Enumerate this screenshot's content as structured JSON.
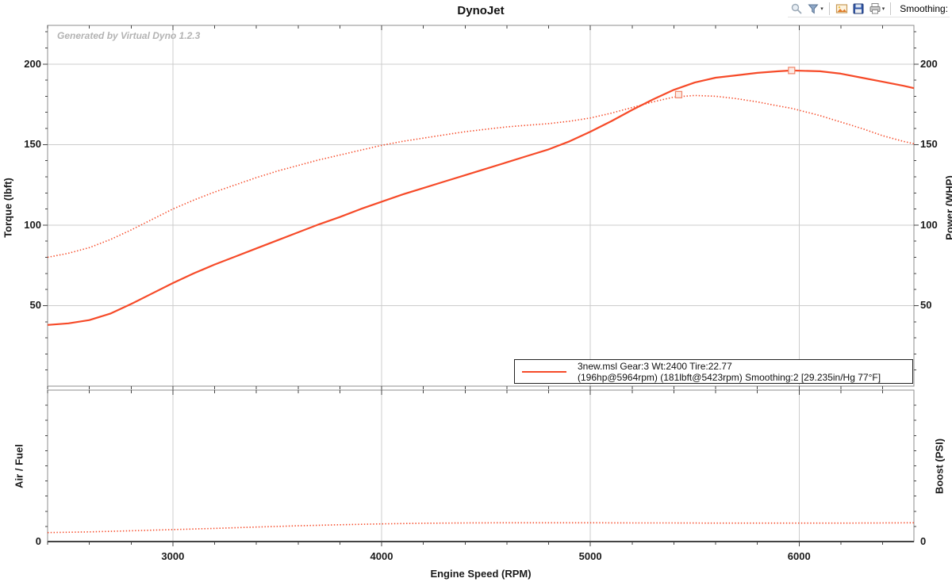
{
  "title": "DynoJet",
  "watermark": "Generated by Virtual Dyno 1.2.3",
  "legend": {
    "line1": "3new.msl Gear:3 Wt:2400 Tire:22.77",
    "line2": "(196hp@5964rpm) (181lbft@5423rpm) Smoothing:2 [29.235in/Hg 77°F]"
  },
  "toolbar": {
    "smoothing_label": "Smoothing:",
    "icons": [
      "zoom",
      "filter",
      "export-image",
      "save",
      "print"
    ]
  },
  "colors": {
    "curve": "#f64a28",
    "marker_stroke": "#f08468",
    "marker_fill": "#fcebe5",
    "grid": "#cccccc",
    "frame": "#8c8c8c",
    "axis_dark": "#444444",
    "text": "#1a1a1a",
    "watermark": "#b3b3b3"
  },
  "chart_data": [
    {
      "id": "dyno-main",
      "type": "line",
      "title": "DynoJet",
      "xlabel": "Engine Speed (RPM)",
      "ylabel_left": "Torque (lbft)",
      "ylabel_right": "Power (WHP)",
      "xlim": [
        2400,
        6550
      ],
      "ylim": [
        0,
        224
      ],
      "x_ticks": [
        3000,
        4000,
        5000,
        6000
      ],
      "x_minor_step": 200,
      "y_ticks": [
        50,
        100,
        150,
        200
      ],
      "y_minor_step": 10,
      "grid": true,
      "legend_position": "bottom-right",
      "series": [
        {
          "name": "power_whp",
          "style": "solid",
          "peak_label": "196hp@5964rpm",
          "peak": {
            "x": 5964,
            "value": 196
          },
          "x": [
            2400,
            2500,
            2600,
            2700,
            2800,
            2900,
            3000,
            3100,
            3200,
            3300,
            3400,
            3500,
            3600,
            3700,
            3800,
            3900,
            4000,
            4100,
            4200,
            4300,
            4400,
            4500,
            4600,
            4700,
            4800,
            4900,
            5000,
            5100,
            5200,
            5300,
            5400,
            5500,
            5600,
            5700,
            5800,
            5900,
            5964,
            6100,
            6200,
            6300,
            6400,
            6500,
            6550
          ],
          "values": [
            38,
            39,
            41,
            45,
            51,
            57.5,
            64,
            70,
            75.5,
            80.5,
            85.5,
            90.5,
            95.5,
            100.5,
            105,
            110,
            114.5,
            119,
            123,
            127,
            131,
            135,
            139,
            143,
            147,
            152,
            158,
            164.5,
            171.5,
            178,
            184,
            188.5,
            191.5,
            193,
            194.5,
            195.5,
            196,
            195.5,
            194,
            191.5,
            189,
            186.5,
            185
          ]
        },
        {
          "name": "torque_lbft",
          "style": "dotted",
          "peak_label": "181lbft@5423rpm",
          "peak": {
            "x": 5423,
            "value": 181
          },
          "x": [
            2400,
            2500,
            2600,
            2700,
            2800,
            2900,
            3000,
            3100,
            3200,
            3300,
            3400,
            3500,
            3600,
            3700,
            3800,
            3900,
            4000,
            4100,
            4200,
            4300,
            4400,
            4500,
            4600,
            4700,
            4800,
            4900,
            5000,
            5100,
            5200,
            5300,
            5400,
            5500,
            5600,
            5700,
            5800,
            5900,
            5964,
            6100,
            6200,
            6300,
            6400,
            6500,
            6550
          ],
          "values": [
            80,
            82.5,
            86,
            91,
            97,
            103.5,
            110,
            115.5,
            120.5,
            125,
            129.5,
            133.5,
            137,
            140.5,
            143.5,
            146.5,
            149.5,
            152,
            154,
            156,
            158,
            159.5,
            161,
            162,
            163,
            164.5,
            166.5,
            169.5,
            173,
            176.5,
            179.5,
            180.5,
            180,
            178.5,
            176.5,
            174,
            172.5,
            168,
            164,
            160,
            155.5,
            152,
            150.5
          ]
        }
      ]
    },
    {
      "id": "afr-boost",
      "type": "line",
      "xlabel": "Engine Speed (RPM)",
      "ylabel_left": "Air / Fuel",
      "ylabel_right": "Boost (PSI)",
      "xlim": [
        2400,
        6550
      ],
      "ylim": [
        0,
        100
      ],
      "x_ticks": [
        3000,
        4000,
        5000,
        6000
      ],
      "x_minor_step": 200,
      "y_ticks": [
        0
      ],
      "y_minor_step": 10,
      "grid": true,
      "axis_note": "only the 0 tick is labeled; values estimated on 0-100 axis scale",
      "series": [
        {
          "name": "air_fuel_trace",
          "style": "dotted",
          "x": [
            2400,
            2600,
            2800,
            3000,
            3200,
            3400,
            3600,
            3800,
            4000,
            4200,
            4400,
            4600,
            4800,
            5000,
            5200,
            5400,
            5600,
            5800,
            6000,
            6200,
            6400,
            6550
          ],
          "values": [
            5.9,
            6.4,
            7.1,
            7.9,
            8.7,
            9.6,
            10.4,
            11.1,
            11.7,
            12.1,
            12.3,
            12.4,
            12.4,
            12.4,
            12.3,
            12.3,
            12.2,
            12.2,
            12.2,
            12.2,
            12.3,
            12.4
          ]
        }
      ]
    }
  ]
}
